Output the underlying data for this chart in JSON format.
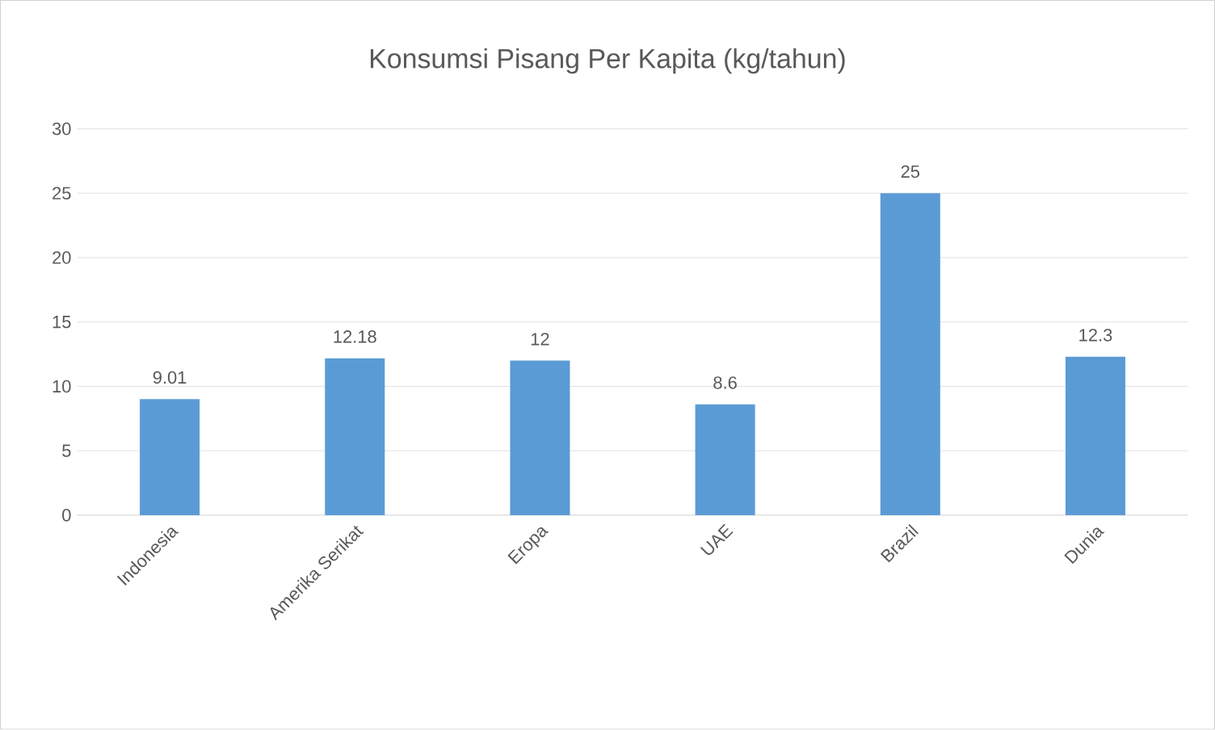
{
  "chart_data": {
    "type": "bar",
    "title": "Konsumsi Pisang Per Kapita (kg/tahun)",
    "categories": [
      "Indonesia",
      "Amerika Serikat",
      "Eropa",
      "UAE",
      "Brazil",
      "Dunia"
    ],
    "values": [
      9.01,
      12.18,
      12,
      8.6,
      25,
      12.3
    ],
    "color": "#5b9bd5",
    "ylim": [
      0,
      30
    ],
    "yticks": [
      0,
      5,
      10,
      15,
      20,
      25,
      30
    ],
    "grid": "y",
    "data_labels": true
  }
}
